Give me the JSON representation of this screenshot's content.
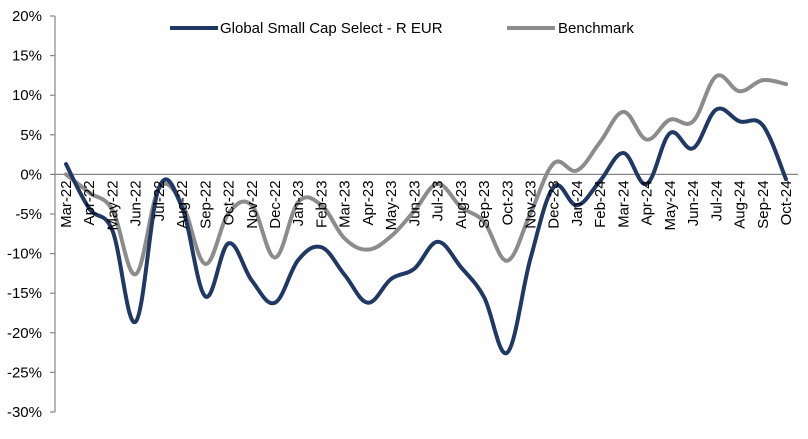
{
  "chart_data": {
    "type": "line",
    "title": "",
    "xlabel": "",
    "ylabel": "",
    "ylim": [
      -30,
      20
    ],
    "y_ticks": [
      20,
      15,
      10,
      5,
      0,
      -5,
      -10,
      -15,
      -20,
      -25,
      -30
    ],
    "y_tick_labels": [
      "20%",
      "15%",
      "10%",
      "5%",
      "0%",
      "-5%",
      "-10%",
      "-15%",
      "-20%",
      "-25%",
      "-30%"
    ],
    "grid": false,
    "legend_position": "top-center",
    "categories": [
      "Mar-22",
      "Apr-22",
      "May-22",
      "Jun-22",
      "Jul-22",
      "Aug-22",
      "Sep-22",
      "Oct-22",
      "Nov-22",
      "Dec-22",
      "Jan-23",
      "Feb-23",
      "Mar-23",
      "Apr-23",
      "May-23",
      "Jun-23",
      "Jul-23",
      "Aug-23",
      "Sep-23",
      "Oct-23",
      "Nov-23",
      "Dec-23",
      "Jan-24",
      "Feb-24",
      "Mar-24",
      "Apr-24",
      "May-24",
      "Jun-24",
      "Jul-24",
      "Aug-24",
      "Sep-24",
      "Oct-24"
    ],
    "series": [
      {
        "name": "Global Small Cap Select - R EUR",
        "color": "#1f3864",
        "values": [
          1.3,
          -4.3,
          -7.1,
          -18.6,
          -1.7,
          -4.2,
          -15.4,
          -8.7,
          -13.4,
          -16.2,
          -10.8,
          -9.2,
          -12.7,
          -16.2,
          -13.2,
          -11.9,
          -8.5,
          -11.7,
          -15.5,
          -22.5,
          -10.6,
          -1.6,
          -3.9,
          -0.8,
          2.7,
          -1.2,
          5.2,
          3.3,
          8.2,
          6.7,
          6.2,
          -0.6
        ]
      },
      {
        "name": "Benchmark",
        "color": "#8c8c8c",
        "values": [
          0.0,
          -2.3,
          -4.5,
          -12.6,
          -1.8,
          -3.7,
          -11.3,
          -4.9,
          -3.9,
          -10.5,
          -3.5,
          -3.9,
          -8.1,
          -9.5,
          -7.8,
          -4.6,
          -1.2,
          -4.1,
          -6.0,
          -10.9,
          -4.9,
          1.4,
          0.5,
          4.1,
          7.9,
          4.4,
          6.9,
          6.7,
          12.4,
          10.5,
          11.9,
          11.4
        ]
      }
    ]
  }
}
